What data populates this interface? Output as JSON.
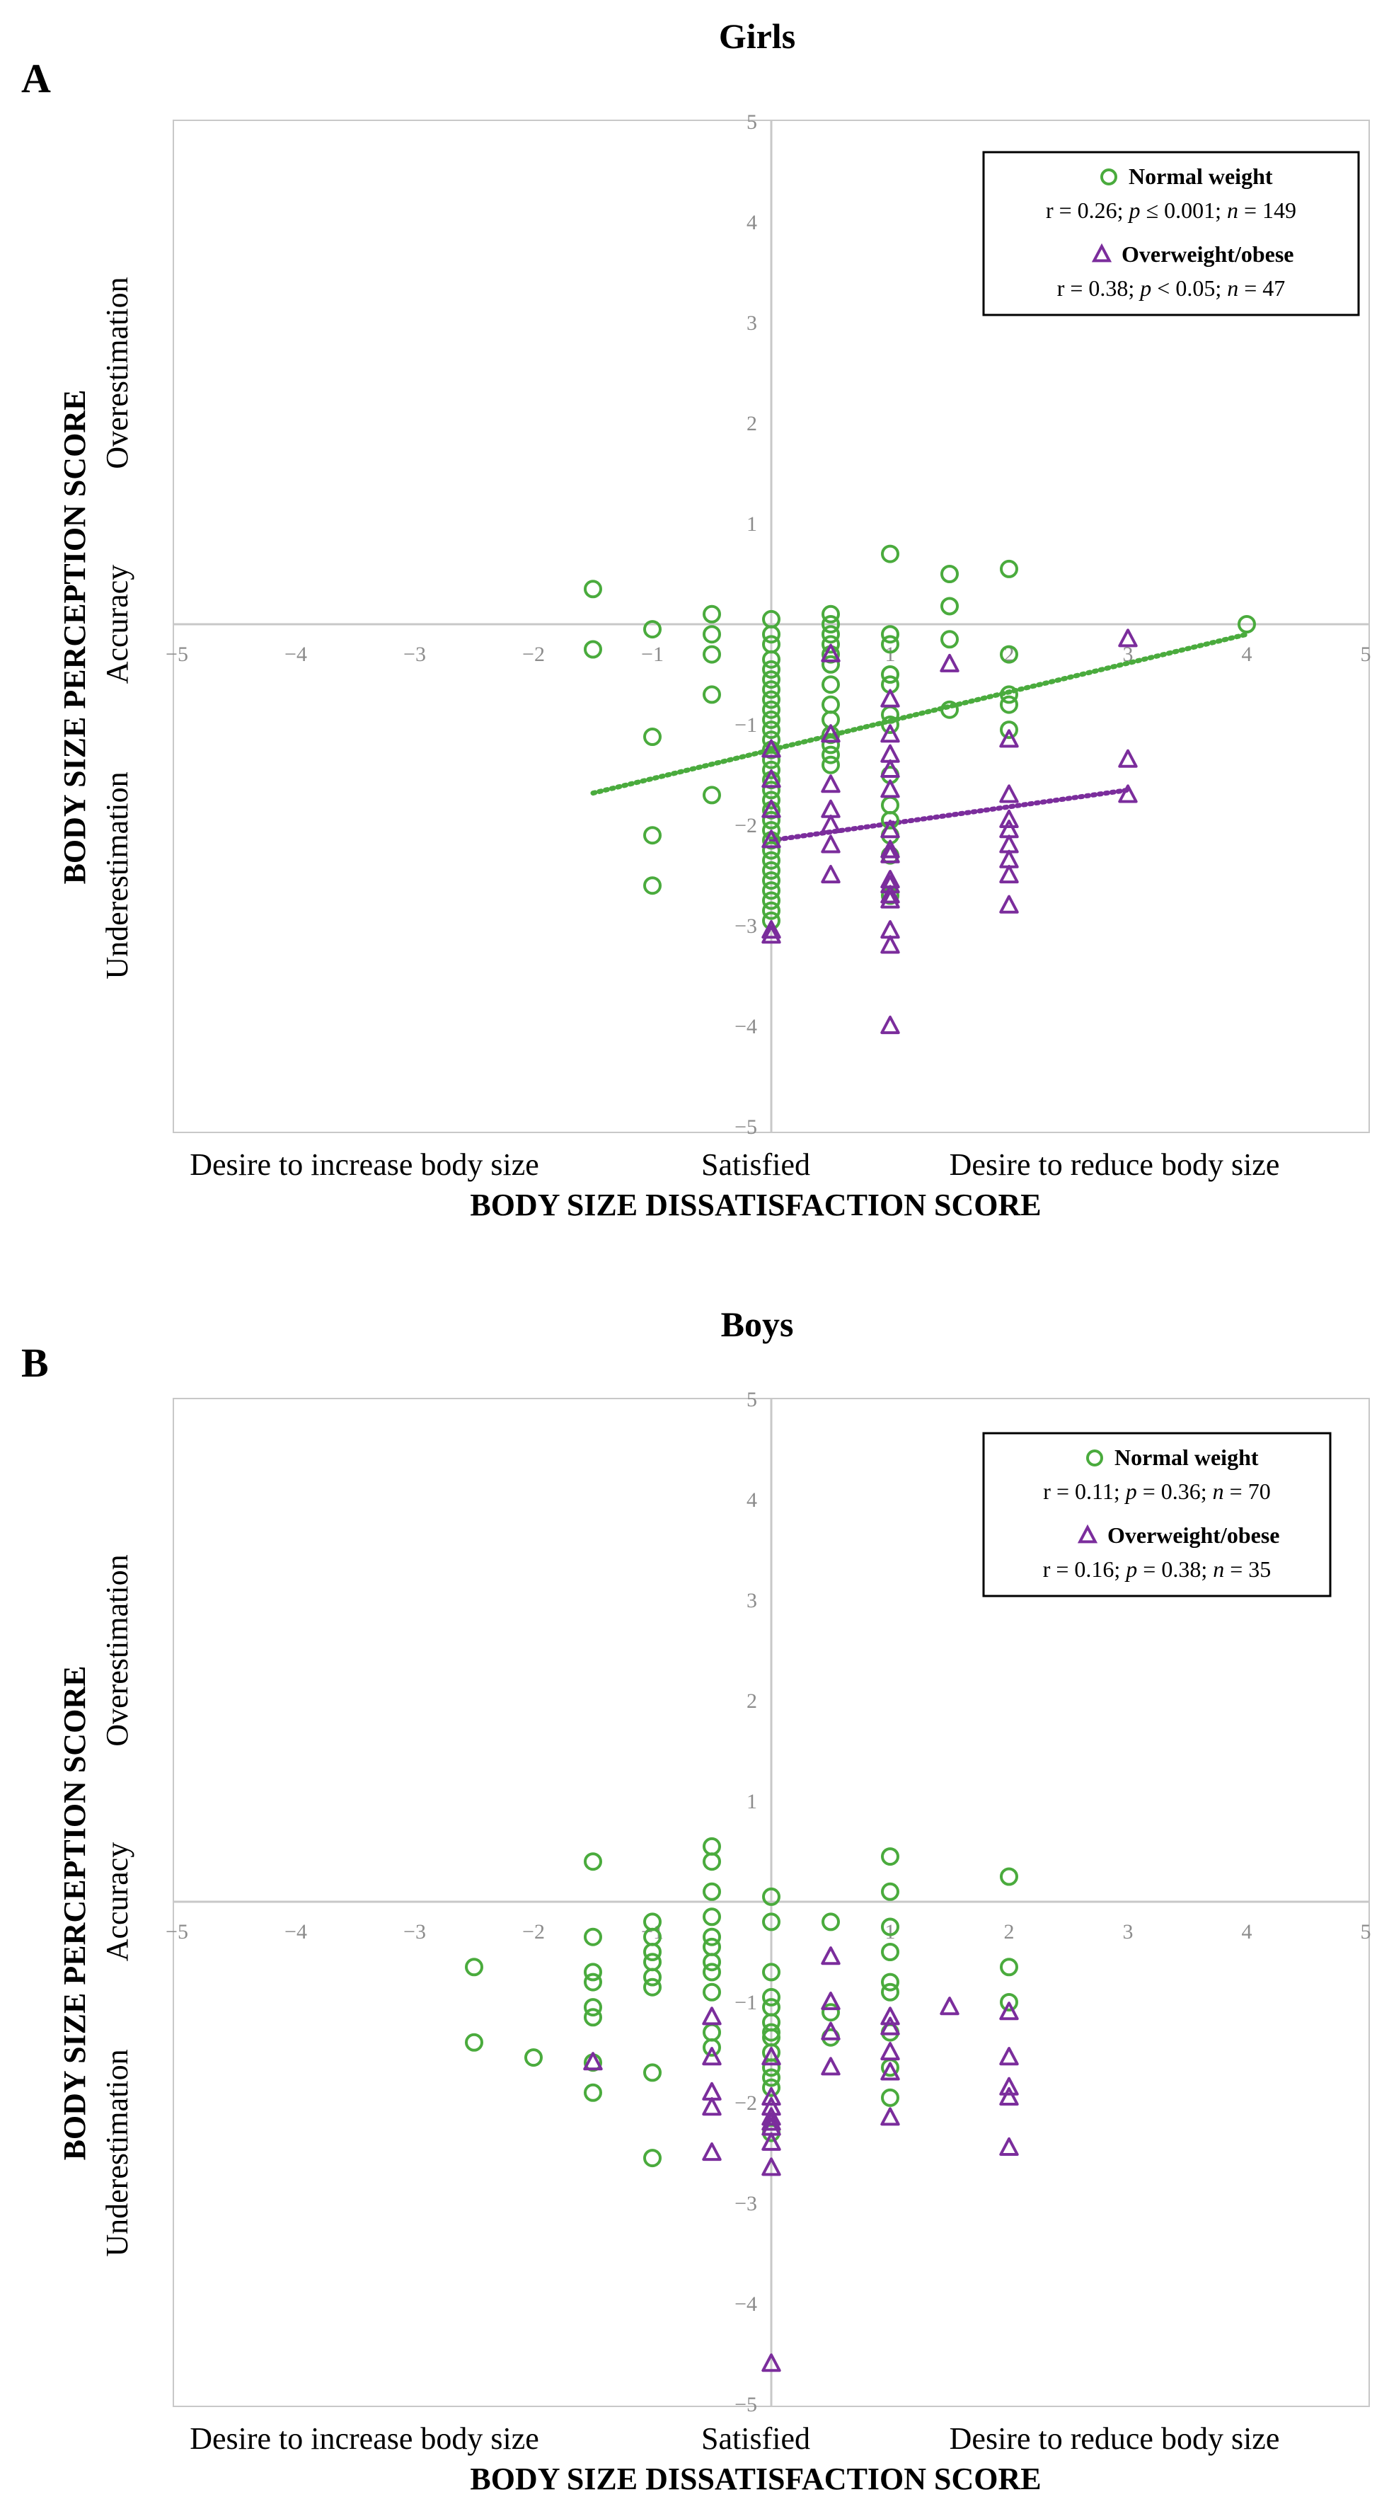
{
  "colors": {
    "normal": "#4aab3d",
    "over": "#7b2d9c",
    "axis": "#c8c8c8",
    "tick_text": "#8c8c8c",
    "frame": "#c8c8c8"
  },
  "chart_data": [
    {
      "type": "scatter",
      "panel_label": "A",
      "title": "Girls",
      "xlabel": "BODY SIZE DISSATISFACTION SCORE",
      "ylabel": "BODY SIZE PERCEPTION SCORE",
      "x_regions": [
        "Desire to increase body size",
        "Satisfied",
        "Desire to reduce body size"
      ],
      "y_regions": [
        "Underestimation",
        "Accuracy",
        "Overestimation"
      ],
      "xlim": [
        -5,
        5
      ],
      "ylim": [
        -5,
        5
      ],
      "xticks": [
        -5,
        -4,
        -3,
        -2,
        -1,
        1,
        2,
        3,
        4,
        5
      ],
      "yticks": [
        -5,
        -4,
        -3,
        -2,
        -1,
        1,
        2,
        3,
        4,
        5
      ],
      "legend_position": "top-right",
      "series": [
        {
          "name": "Normal weight",
          "stats_r": "r = 0.26; ",
          "stats_p_sym": "p",
          "stats_p_val": " ≤  0.001; ",
          "stats_n_sym": "n",
          "stats_n_val": " = 149",
          "marker": "circle",
          "trend": {
            "x0": -1.5,
            "y0": -1.68,
            "x1": 4.0,
            "y1": -0.1
          },
          "points": [
            [
              -1.5,
              0.35
            ],
            [
              -1.5,
              -0.25
            ],
            [
              -1.0,
              -0.05
            ],
            [
              -1.0,
              -1.12
            ],
            [
              -1.0,
              -2.1
            ],
            [
              -1.0,
              -2.6
            ],
            [
              -0.5,
              0.1
            ],
            [
              -0.5,
              -0.1
            ],
            [
              -0.5,
              -0.3
            ],
            [
              -0.5,
              -0.7
            ],
            [
              -0.5,
              -1.7
            ],
            [
              0,
              0.05
            ],
            [
              0,
              -0.1
            ],
            [
              0,
              -0.2
            ],
            [
              0,
              -0.35
            ],
            [
              0,
              -0.45
            ],
            [
              0,
              -0.55
            ],
            [
              0,
              -0.65
            ],
            [
              0,
              -0.75
            ],
            [
              0,
              -0.85
            ],
            [
              0,
              -0.95
            ],
            [
              0,
              -1.05
            ],
            [
              0,
              -1.15
            ],
            [
              0,
              -1.25
            ],
            [
              0,
              -1.35
            ],
            [
              0,
              -1.45
            ],
            [
              0,
              -1.55
            ],
            [
              0,
              -1.65
            ],
            [
              0,
              -1.75
            ],
            [
              0,
              -1.85
            ],
            [
              0,
              -1.95
            ],
            [
              0,
              -2.05
            ],
            [
              0,
              -2.15
            ],
            [
              0,
              -2.25
            ],
            [
              0,
              -2.35
            ],
            [
              0,
              -2.45
            ],
            [
              0,
              -2.55
            ],
            [
              0,
              -2.65
            ],
            [
              0,
              -2.75
            ],
            [
              0,
              -2.85
            ],
            [
              0,
              -2.95
            ],
            [
              0.5,
              0.1
            ],
            [
              0.5,
              0.0
            ],
            [
              0.5,
              -0.1
            ],
            [
              0.5,
              -0.2
            ],
            [
              0.5,
              -0.3
            ],
            [
              0.5,
              -0.4
            ],
            [
              0.5,
              -0.6
            ],
            [
              0.5,
              -0.8
            ],
            [
              0.5,
              -0.95
            ],
            [
              0.5,
              -1.1
            ],
            [
              0.5,
              -1.2
            ],
            [
              0.5,
              -1.3
            ],
            [
              0.5,
              -1.4
            ],
            [
              1.0,
              0.7
            ],
            [
              1.0,
              -0.1
            ],
            [
              1.0,
              -0.2
            ],
            [
              1.0,
              -0.5
            ],
            [
              1.0,
              -0.6
            ],
            [
              1.0,
              -0.9
            ],
            [
              1.0,
              -1.0
            ],
            [
              1.0,
              -1.5
            ],
            [
              1.0,
              -1.8
            ],
            [
              1.0,
              -1.95
            ],
            [
              1.0,
              -2.1
            ],
            [
              1.0,
              -2.3
            ],
            [
              1.0,
              -2.7
            ],
            [
              1.5,
              0.5
            ],
            [
              1.5,
              0.18
            ],
            [
              1.5,
              -0.15
            ],
            [
              1.5,
              -0.85
            ],
            [
              2.0,
              0.55
            ],
            [
              2.0,
              -0.3
            ],
            [
              2.0,
              -0.7
            ],
            [
              2.0,
              -0.8
            ],
            [
              2.0,
              -1.05
            ],
            [
              4.0,
              0.0
            ]
          ]
        },
        {
          "name": "Overweight/obese",
          "stats_r": "r = 0.38; ",
          "stats_p_sym": "p",
          "stats_p_val": " < 0.05; ",
          "stats_n_sym": "n",
          "stats_n_val": " = 47",
          "marker": "triangle",
          "trend": {
            "x0": 0,
            "y0": -2.15,
            "x1": 3.0,
            "y1": -1.65
          },
          "points": [
            [
              0,
              -1.25
            ],
            [
              0,
              -1.55
            ],
            [
              0,
              -1.85
            ],
            [
              0,
              -2.15
            ],
            [
              0,
              -3.05
            ],
            [
              0,
              -3.1
            ],
            [
              0.5,
              -0.3
            ],
            [
              0.5,
              -1.1
            ],
            [
              0.5,
              -1.6
            ],
            [
              0.5,
              -1.85
            ],
            [
              0.5,
              -2.0
            ],
            [
              0.5,
              -2.2
            ],
            [
              0.5,
              -2.5
            ],
            [
              1.0,
              -0.75
            ],
            [
              1.0,
              -1.1
            ],
            [
              1.0,
              -1.3
            ],
            [
              1.0,
              -1.45
            ],
            [
              1.0,
              -1.65
            ],
            [
              1.0,
              -2.05
            ],
            [
              1.0,
              -2.25
            ],
            [
              1.0,
              -2.3
            ],
            [
              1.0,
              -2.55
            ],
            [
              1.0,
              -2.6
            ],
            [
              1.0,
              -2.7
            ],
            [
              1.0,
              -2.75
            ],
            [
              1.0,
              -3.05
            ],
            [
              1.0,
              -3.2
            ],
            [
              1.0,
              -4.0
            ],
            [
              1.5,
              -0.4
            ],
            [
              2.0,
              -1.15
            ],
            [
              2.0,
              -1.7
            ],
            [
              2.0,
              -1.95
            ],
            [
              2.0,
              -2.05
            ],
            [
              2.0,
              -2.2
            ],
            [
              2.0,
              -2.35
            ],
            [
              2.0,
              -2.5
            ],
            [
              2.0,
              -2.8
            ],
            [
              3.0,
              -0.15
            ],
            [
              3.0,
              -1.35
            ],
            [
              3.0,
              -1.7
            ]
          ]
        }
      ]
    },
    {
      "type": "scatter",
      "panel_label": "B",
      "title": "Boys",
      "xlabel": "BODY SIZE DISSATISFACTION SCORE",
      "ylabel": "BODY SIZE PERCEPTION SCORE",
      "x_regions": [
        "Desire to increase body size",
        "Satisfied",
        "Desire to reduce body size"
      ],
      "y_regions": [
        "Underestimation",
        "Accuracy",
        "Overestimation"
      ],
      "xlim": [
        -5,
        5
      ],
      "ylim": [
        -5,
        5
      ],
      "xticks": [
        -5,
        -4,
        -3,
        -2,
        -1,
        1,
        2,
        3,
        4,
        5
      ],
      "yticks": [
        -5,
        -4,
        -3,
        -2,
        -1,
        1,
        2,
        3,
        4,
        5
      ],
      "legend_position": "top-right",
      "series": [
        {
          "name": "Normal weight",
          "stats_r": "r = 0.11; ",
          "stats_p_sym": "p",
          "stats_p_val": " = 0.36; ",
          "stats_n_sym": "n",
          "stats_n_val": " = 70",
          "marker": "circle",
          "points": [
            [
              -2.5,
              -0.65
            ],
            [
              -2.5,
              -1.4
            ],
            [
              -2.0,
              -1.55
            ],
            [
              -1.5,
              0.4
            ],
            [
              -1.5,
              -0.35
            ],
            [
              -1.5,
              -0.7
            ],
            [
              -1.5,
              -0.8
            ],
            [
              -1.5,
              -1.05
            ],
            [
              -1.5,
              -1.15
            ],
            [
              -1.5,
              -1.6
            ],
            [
              -1.5,
              -1.9
            ],
            [
              -1.0,
              -0.2
            ],
            [
              -1.0,
              -0.35
            ],
            [
              -1.0,
              -0.5
            ],
            [
              -1.0,
              -0.6
            ],
            [
              -1.0,
              -0.75
            ],
            [
              -1.0,
              -0.85
            ],
            [
              -1.0,
              -1.7
            ],
            [
              -1.0,
              -2.55
            ],
            [
              -0.5,
              0.55
            ],
            [
              -0.5,
              0.4
            ],
            [
              -0.5,
              0.1
            ],
            [
              -0.5,
              -0.15
            ],
            [
              -0.5,
              -0.35
            ],
            [
              -0.5,
              -0.45
            ],
            [
              -0.5,
              -0.6
            ],
            [
              -0.5,
              -0.7
            ],
            [
              -0.5,
              -0.9
            ],
            [
              -0.5,
              -1.3
            ],
            [
              -0.5,
              -1.45
            ],
            [
              0,
              0.05
            ],
            [
              0,
              -0.2
            ],
            [
              0,
              -0.7
            ],
            [
              0,
              -0.95
            ],
            [
              0,
              -1.05
            ],
            [
              0,
              -1.2
            ],
            [
              0,
              -1.3
            ],
            [
              0,
              -1.35
            ],
            [
              0,
              -1.5
            ],
            [
              0,
              -1.65
            ],
            [
              0,
              -1.75
            ],
            [
              0,
              -1.85
            ],
            [
              0,
              -2.3
            ],
            [
              0.5,
              -0.2
            ],
            [
              0.5,
              -1.1
            ],
            [
              0.5,
              -1.35
            ],
            [
              1.0,
              0.45
            ],
            [
              1.0,
              0.1
            ],
            [
              1.0,
              -0.25
            ],
            [
              1.0,
              -0.5
            ],
            [
              1.0,
              -0.8
            ],
            [
              1.0,
              -0.9
            ],
            [
              1.0,
              -1.3
            ],
            [
              1.0,
              -1.65
            ],
            [
              1.0,
              -1.95
            ],
            [
              2.0,
              0.25
            ],
            [
              2.0,
              -0.65
            ],
            [
              2.0,
              -1.0
            ]
          ]
        },
        {
          "name": "Overweight/obese",
          "stats_r": "r = 0.16; ",
          "stats_p_sym": "p",
          "stats_p_val": " = 0.38; ",
          "stats_n_sym": "n",
          "stats_n_val": " = 35",
          "marker": "triangle",
          "points": [
            [
              -1.5,
              -1.6
            ],
            [
              -0.5,
              -1.15
            ],
            [
              -0.5,
              -1.55
            ],
            [
              -0.5,
              -1.9
            ],
            [
              -0.5,
              -2.05
            ],
            [
              -0.5,
              -2.5
            ],
            [
              0,
              -1.55
            ],
            [
              0,
              -1.95
            ],
            [
              0,
              -2.05
            ],
            [
              0,
              -2.15
            ],
            [
              0,
              -2.2
            ],
            [
              0,
              -2.25
            ],
            [
              0,
              -2.4
            ],
            [
              0,
              -2.65
            ],
            [
              0,
              -4.6
            ],
            [
              0.5,
              -0.55
            ],
            [
              0.5,
              -1.0
            ],
            [
              0.5,
              -1.3
            ],
            [
              0.5,
              -1.65
            ],
            [
              1.0,
              -1.15
            ],
            [
              1.0,
              -1.25
            ],
            [
              1.0,
              -1.5
            ],
            [
              1.0,
              -1.7
            ],
            [
              1.0,
              -2.15
            ],
            [
              1.5,
              -1.05
            ],
            [
              2.0,
              -1.1
            ],
            [
              2.0,
              -1.55
            ],
            [
              2.0,
              -1.85
            ],
            [
              2.0,
              -1.95
            ],
            [
              2.0,
              -2.45
            ]
          ]
        }
      ]
    }
  ]
}
